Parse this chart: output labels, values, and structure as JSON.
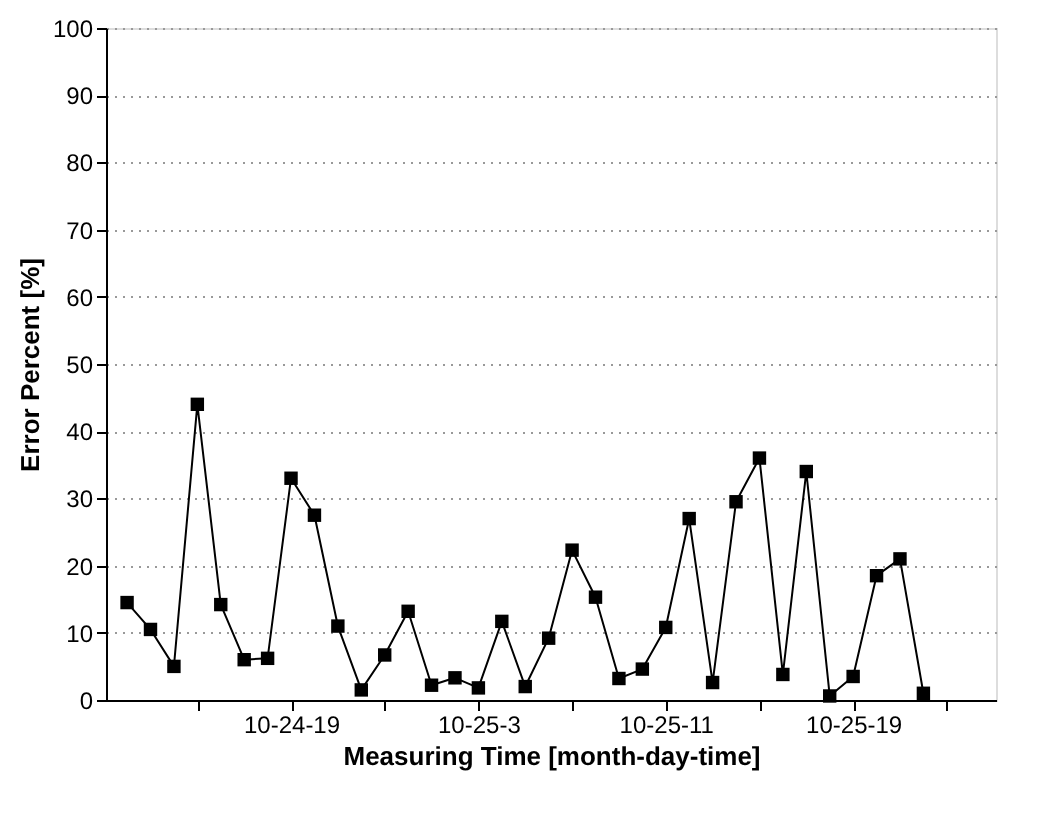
{
  "chart_data": {
    "type": "line",
    "xlabel": "Measuring Time [month-day-time]",
    "ylabel": "Error Percent [%]",
    "categories": [
      null,
      null,
      null,
      null,
      null,
      null,
      null,
      "10-24-19",
      null,
      null,
      null,
      null,
      null,
      null,
      null,
      "10-25-3",
      null,
      null,
      null,
      null,
      null,
      null,
      null,
      "10-25-11",
      null,
      null,
      null,
      null,
      null,
      null,
      null,
      "10-25-19",
      null,
      null,
      null
    ],
    "series": [
      {
        "color": "#000000",
        "values": [
          14.5,
          10.5,
          5,
          44,
          14.2,
          6,
          6.2,
          33,
          27.5,
          11,
          1.5,
          6.7,
          13.2,
          2.2,
          3.3,
          1.8,
          11.7,
          2,
          9.2,
          22.3,
          15.3,
          3.2,
          4.6,
          10.8,
          27,
          2.6,
          29.5,
          36,
          3.8,
          34,
          0.6,
          3.5,
          18.5,
          21,
          1
        ]
      }
    ],
    "ylim": [
      0,
      100
    ],
    "yticks": [
      0,
      10,
      20,
      30,
      40,
      50,
      60,
      70,
      80,
      90,
      100
    ],
    "grid": "y",
    "marker": "square",
    "line_style": "solid"
  }
}
